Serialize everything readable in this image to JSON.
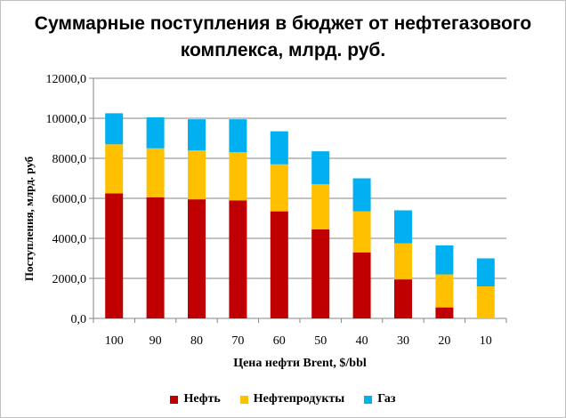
{
  "chart_data": {
    "type": "bar",
    "stacked": true,
    "title": "Суммарные поступления в бюджет от нефтегазового комплекса, млрд. руб.",
    "xlabel": "Цена нефти Brent, $/bbl",
    "ylabel": "Поступления, млрд. руб",
    "ylim": [
      0,
      12000
    ],
    "yticks": [
      "0,0",
      "2000,0",
      "4000,0",
      "6000,0",
      "8000,0",
      "10000,0",
      "12000,0"
    ],
    "grid": true,
    "legend_position": "bottom",
    "categories": [
      "100",
      "90",
      "80",
      "70",
      "60",
      "50",
      "40",
      "30",
      "20",
      "10"
    ],
    "series": [
      {
        "name": "Нефть",
        "color": "#c00000",
        "values": [
          6250,
          6050,
          5950,
          5900,
          5350,
          4450,
          3300,
          1950,
          550,
          0
        ]
      },
      {
        "name": "Нефтепродукты",
        "color": "#ffc000",
        "values": [
          2450,
          2450,
          2450,
          2400,
          2350,
          2250,
          2050,
          1800,
          1650,
          1600
        ]
      },
      {
        "name": "Газ",
        "color": "#00b0f0",
        "values": [
          1550,
          1550,
          1550,
          1650,
          1650,
          1650,
          1650,
          1650,
          1450,
          1400
        ]
      }
    ]
  }
}
